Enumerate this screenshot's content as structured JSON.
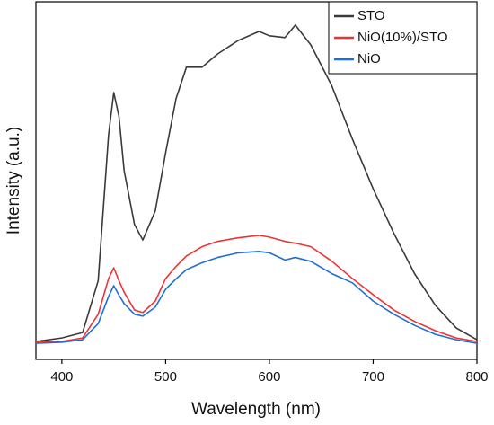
{
  "chart_data": {
    "type": "line",
    "xlabel": "Wavelength (nm)",
    "ylabel": "Intensity (a.u.)",
    "x": [
      375,
      400,
      420,
      435,
      445,
      450,
      455,
      460,
      470,
      478,
      490,
      500,
      510,
      520,
      535,
      550,
      570,
      590,
      600,
      615,
      625,
      640,
      660,
      680,
      700,
      720,
      740,
      760,
      780,
      800
    ],
    "series": [
      {
        "name": "STO",
        "color": "#3a3a3a",
        "values": [
          5,
          6,
          7.5,
          22,
          62.8,
          74.6,
          68,
          52.8,
          37.7,
          33.4,
          41.5,
          57.8,
          72.9,
          81.7,
          81.7,
          85.4,
          89.2,
          91.7,
          90.5,
          90,
          93.5,
          87.9,
          76.6,
          61.6,
          47.7,
          35.2,
          23.9,
          15.1,
          8.8,
          5.5
        ]
      },
      {
        "name": "NiO(10%)/STO",
        "color": "#ee3333",
        "values": [
          4.8,
          5,
          6,
          12.6,
          22.6,
          25.6,
          22,
          18.8,
          13.8,
          13.1,
          16.3,
          22.6,
          26,
          28.9,
          31.5,
          33,
          34,
          34.7,
          34.2,
          33,
          32.5,
          31.5,
          27.5,
          22.6,
          18.1,
          13.8,
          10.6,
          8,
          6,
          5
        ]
      },
      {
        "name": "NiO",
        "color": "#1f6fd6",
        "values": [
          4.5,
          4.8,
          5.5,
          10,
          17.6,
          20.6,
          18,
          15.6,
          12.6,
          12.1,
          14.6,
          19.6,
          22.5,
          25.1,
          27,
          28.5,
          29.8,
          30.2,
          29.8,
          27.8,
          28.5,
          27.4,
          24,
          21.4,
          16.3,
          12.6,
          9.5,
          7,
          5.5,
          4.5
        ]
      }
    ],
    "xlim": [
      375,
      800
    ],
    "xticks": [
      400,
      500,
      600,
      700,
      800
    ],
    "ylim": [
      0,
      100
    ],
    "legend": "upper right"
  }
}
